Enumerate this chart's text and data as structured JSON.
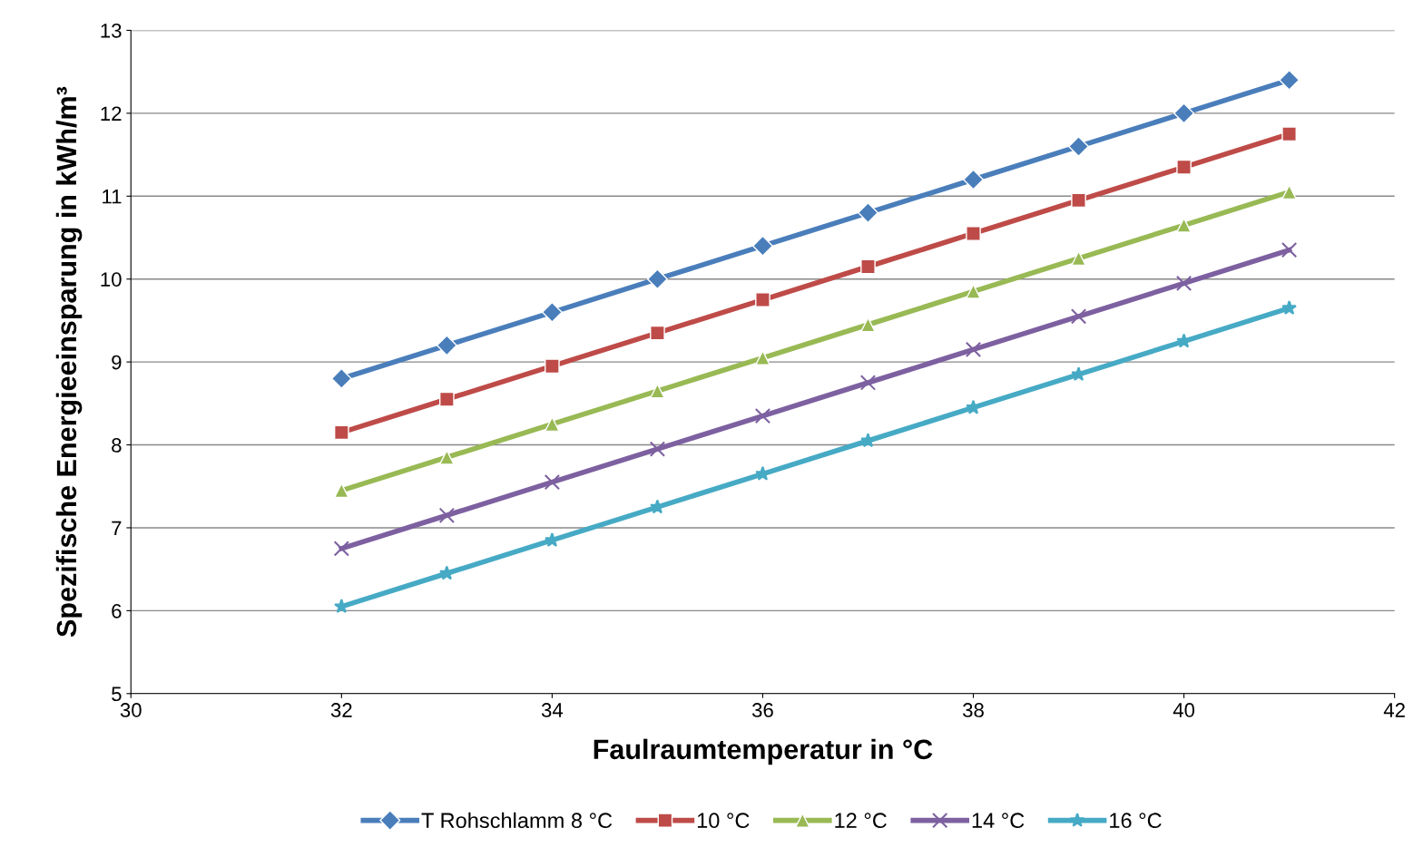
{
  "chart_data": {
    "type": "line",
    "xlabel": "Faulraumtemperatur in °C",
    "ylabel": "Spezifische Energieeinsparung in kWh/m³",
    "x": [
      32,
      33,
      34,
      35,
      36,
      37,
      38,
      39,
      40,
      41
    ],
    "series": [
      {
        "name": "T Rohschlamm 8 °C",
        "color": "#4a7ebb",
        "marker": "diamond",
        "values": [
          8.8,
          9.2,
          9.6,
          10.0,
          10.4,
          10.8,
          11.2,
          11.6,
          12.0,
          12.4
        ]
      },
      {
        "name": "10 °C",
        "color": "#be4b48",
        "marker": "square",
        "values": [
          8.15,
          8.55,
          8.95,
          9.35,
          9.75,
          10.15,
          10.55,
          10.95,
          11.35,
          11.75
        ]
      },
      {
        "name": "12 °C",
        "color": "#98b954",
        "marker": "triangle",
        "values": [
          7.45,
          7.85,
          8.25,
          8.65,
          9.05,
          9.45,
          9.85,
          10.25,
          10.65,
          11.05
        ]
      },
      {
        "name": "14 °C",
        "color": "#7d60a0",
        "marker": "cross",
        "values": [
          6.75,
          7.15,
          7.55,
          7.95,
          8.35,
          8.75,
          9.15,
          9.55,
          9.95,
          10.35
        ]
      },
      {
        "name": "16 °C",
        "color": "#46aac5",
        "marker": "star",
        "values": [
          6.05,
          6.45,
          6.85,
          7.25,
          7.65,
          8.05,
          8.45,
          8.85,
          9.25,
          9.65
        ]
      }
    ],
    "xlim": [
      30,
      42
    ],
    "xticks": [
      30,
      32,
      34,
      36,
      38,
      40,
      42
    ],
    "ylim": [
      5,
      13
    ],
    "yticks": [
      5,
      6,
      7,
      8,
      9,
      10,
      11,
      12,
      13
    ],
    "grid": "y",
    "legend": "bottom",
    "line_style": "solid"
  }
}
